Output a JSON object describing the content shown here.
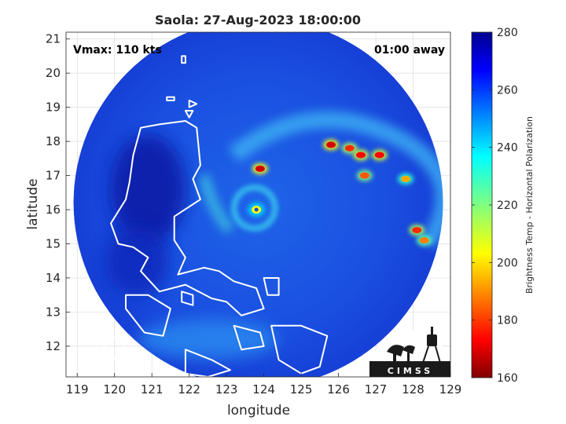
{
  "chart_data": {
    "type": "heatmap",
    "title": "Saola: 27-Aug-2023 18:00:00",
    "xlabel": "longitude",
    "ylabel": "latitude",
    "xlim": [
      118.7,
      129.0
    ],
    "ylim": [
      11.1,
      21.2
    ],
    "xticks": [
      119,
      120,
      121,
      122,
      123,
      124,
      125,
      126,
      127,
      128,
      129
    ],
    "yticks": [
      12,
      13,
      14,
      15,
      16,
      17,
      18,
      19,
      20,
      21
    ],
    "grid": true,
    "annotations": {
      "vmax": "Vmax: 110 kts",
      "time_offset": "01:00 away"
    },
    "colorbar": {
      "label": "Brightness Temp - Horizontal Polarization",
      "min": 160,
      "max": 280,
      "ticks": [
        160,
        180,
        200,
        220,
        240,
        260,
        280
      ],
      "colormap": "jet"
    },
    "swath": {
      "center_lon": 123.85,
      "center_lat": 16.2,
      "radius_deg": 4.95
    },
    "storm_center": {
      "lon": 123.75,
      "lat": 16.05
    },
    "features": [
      {
        "name": "eyewall",
        "lon": 123.8,
        "lat": 16.0,
        "tb": 205
      },
      {
        "name": "convective-cell",
        "lon": 123.9,
        "lat": 17.2,
        "tb": 170
      },
      {
        "name": "convective-cell",
        "lon": 125.8,
        "lat": 17.9,
        "tb": 170
      },
      {
        "name": "convective-cell",
        "lon": 126.3,
        "lat": 17.8,
        "tb": 180
      },
      {
        "name": "convective-cell",
        "lon": 126.6,
        "lat": 17.6,
        "tb": 175
      },
      {
        "name": "convective-cell",
        "lon": 127.1,
        "lat": 17.6,
        "tb": 175
      },
      {
        "name": "convective-cell",
        "lon": 126.7,
        "lat": 17.0,
        "tb": 185
      },
      {
        "name": "convective-cell",
        "lon": 127.8,
        "lat": 16.9,
        "tb": 195
      },
      {
        "name": "convective-cell",
        "lon": 128.1,
        "lat": 15.4,
        "tb": 180
      },
      {
        "name": "convective-cell",
        "lon": 128.3,
        "lat": 15.1,
        "tb": 190
      }
    ]
  },
  "logo": {
    "text": "CIMSS"
  },
  "colors": {
    "land_outline": "#ffffff",
    "background": "#ffffff",
    "axis": "#262626"
  }
}
